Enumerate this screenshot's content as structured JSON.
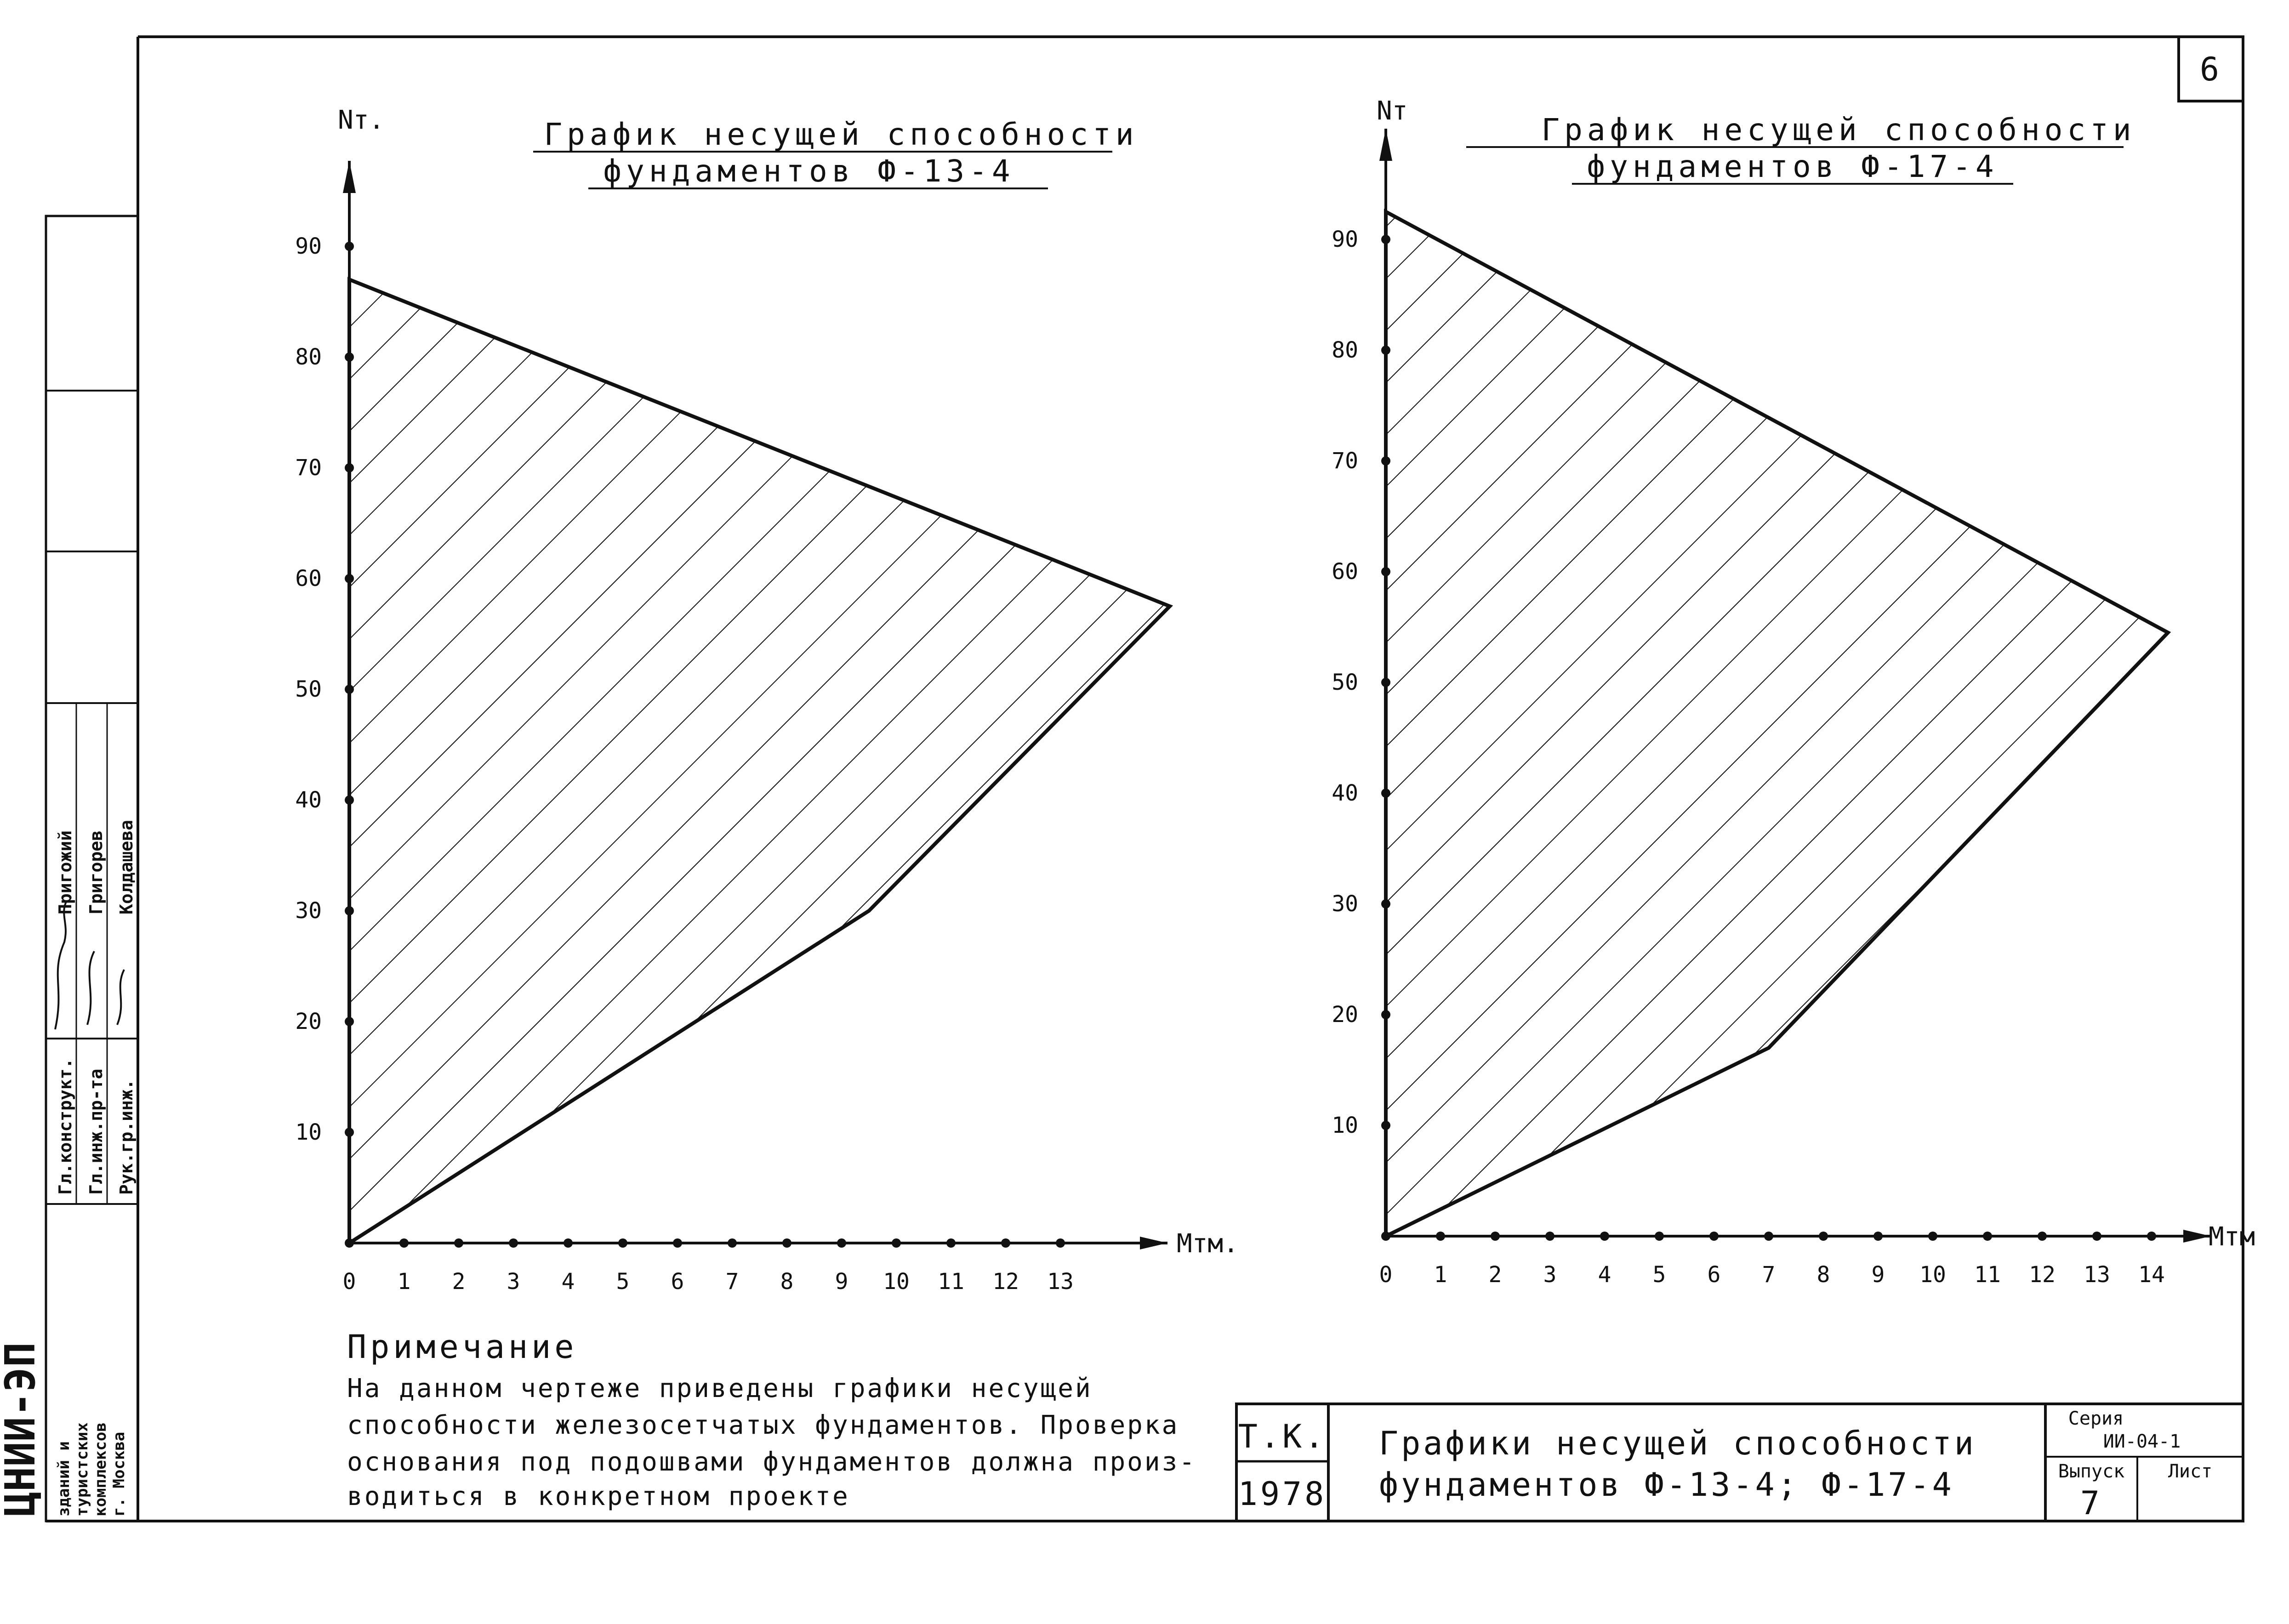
{
  "page": {
    "sheet_number": "6",
    "note_heading": "Примечание",
    "note_lines": [
      "На данном чертеже приведены графики несущей",
      "способности железосетчатых фундаментов. Проверка",
      "основания под подошвами фундаментов должна произ-",
      "водиться в конкретном проекте"
    ]
  },
  "title_block": {
    "org": "Т.К.",
    "year": "1978",
    "title_line1": "Графики несущей способности",
    "title_line2": "фундаментов Ф-13-4; Ф-17-4",
    "series_label": "Серия",
    "series_value": "ИИ-04-1",
    "issue_label": "Выпуск",
    "issue_value": "7",
    "sheet_label": "Лист"
  },
  "side_stamp": {
    "institute": "ЦНИИ-ЭП",
    "institute_desc": [
      "зданий и",
      "туристских",
      "комплексов",
      "г. Москва"
    ],
    "roles": [
      "Гл.конструкт.",
      "Гл.инж.пр-та",
      "Рук.гр.инж."
    ],
    "names": [
      "Пригожий",
      "Григорев",
      "Колдашева"
    ]
  },
  "colors": {
    "ink": "#111111",
    "paper": "#ffffff"
  },
  "chart_data": [
    {
      "type": "area",
      "title": "График несущей способности",
      "subtitle": "фундаментов Ф-13-4",
      "xlabel": "Мтм.",
      "ylabel": "Nт.",
      "xlim": [
        0,
        15
      ],
      "ylim": [
        0,
        95
      ],
      "x_ticks": [
        0,
        1,
        2,
        3,
        4,
        5,
        6,
        7,
        8,
        9,
        10,
        11,
        12,
        13
      ],
      "y_ticks": [
        10,
        20,
        30,
        40,
        50,
        60,
        70,
        80,
        90
      ],
      "grid": false,
      "fill": "hatched",
      "boundary": [
        {
          "x": 0,
          "y": 0
        },
        {
          "x": 9.5,
          "y": 30
        },
        {
          "x": 15,
          "y": 57.5
        },
        {
          "x": 0,
          "y": 87
        }
      ]
    },
    {
      "type": "area",
      "title": "График несущей способности",
      "subtitle": "фундаментов Ф-17-4",
      "xlabel": "Мтм",
      "ylabel": "Nт",
      "xlim": [
        0,
        15
      ],
      "ylim": [
        0,
        95
      ],
      "x_ticks": [
        0,
        1,
        2,
        3,
        4,
        5,
        6,
        7,
        8,
        9,
        10,
        11,
        12,
        13,
        14
      ],
      "y_ticks": [
        10,
        20,
        30,
        40,
        50,
        60,
        70,
        80,
        90
      ],
      "grid": false,
      "fill": "hatched",
      "boundary": [
        {
          "x": 0,
          "y": 0
        },
        {
          "x": 7,
          "y": 17
        },
        {
          "x": 14.3,
          "y": 54.5
        },
        {
          "x": 0,
          "y": 92.5
        }
      ]
    }
  ]
}
